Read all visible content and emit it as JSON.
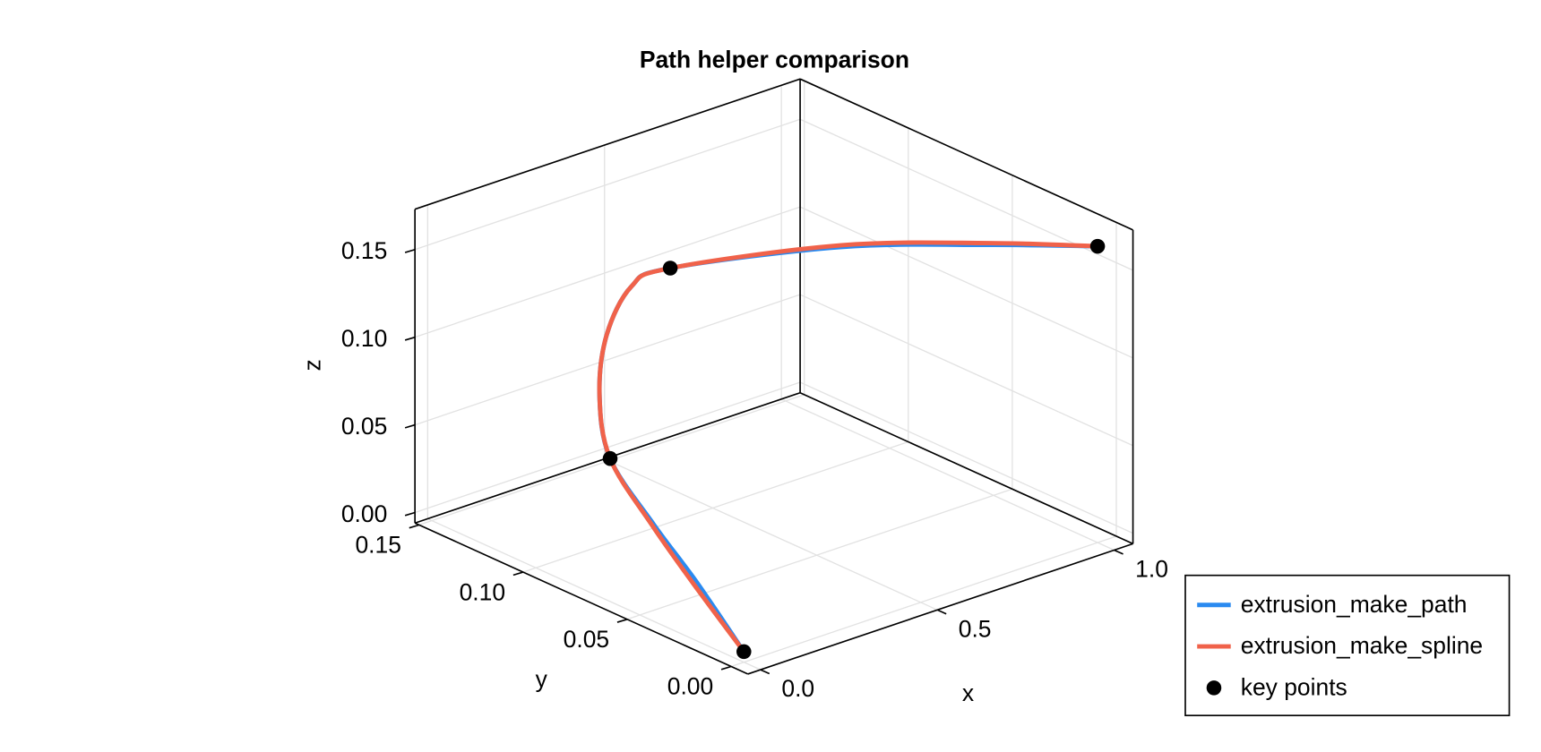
{
  "chart_data": {
    "type": "line3d",
    "title": "Path helper comparison",
    "xlabel": "x",
    "ylabel": "y",
    "zlabel": "z",
    "xlim": [
      -0.036,
      1.053
    ],
    "ylim": [
      -0.008,
      0.152
    ],
    "zlim": [
      -0.006,
      0.173
    ],
    "xticks": [
      {
        "value": 0,
        "label": "0.0"
      },
      {
        "value": 0.5,
        "label": "0.5"
      },
      {
        "value": 1,
        "label": "1.0"
      }
    ],
    "yticks": [
      {
        "value": 0,
        "label": "0.00"
      },
      {
        "value": 0.05,
        "label": "0.05"
      },
      {
        "value": 0.1,
        "label": "0.10"
      },
      {
        "value": 0.15,
        "label": "0.15"
      }
    ],
    "zticks": [
      {
        "value": 0,
        "label": "0.00"
      },
      {
        "value": 0.05,
        "label": "0.05"
      },
      {
        "value": 0.1,
        "label": "0.10"
      },
      {
        "value": 0.15,
        "label": "0.15"
      }
    ],
    "grid": true,
    "legend": "right",
    "series": [
      {
        "name": "extrusion_make_path",
        "color": "#2a8af0",
        "x": [
          0,
          0.16,
          0.215,
          0.21,
          0.18,
          0.2,
          0.27,
          0.38,
          0.57,
          0.81,
          1.0
        ],
        "y": [
          0,
          0.05,
          0.08,
          0.1,
          0.1,
          0.1,
          0.1,
          0.1,
          0.05,
          0.02,
          0
        ],
        "z": [
          0,
          0.002,
          0.015,
          0.042,
          0.08,
          0.113,
          0.136,
          0.139,
          0.165,
          0.166,
          0.163
        ]
      },
      {
        "name": "extrusion_make_spline",
        "color": "#f0624a",
        "x": [
          0,
          0.15,
          0.21,
          0.21,
          0.18,
          0.2,
          0.27,
          0.38,
          0.57,
          0.81,
          1.0
        ],
        "y": [
          0,
          0.05,
          0.08,
          0.1,
          0.1,
          0.1,
          0.1,
          0.1,
          0.05,
          0.02,
          0
        ],
        "z": [
          0,
          0.002,
          0.015,
          0.042,
          0.08,
          0.113,
          0.136,
          0.139,
          0.166,
          0.167,
          0.163
        ]
      },
      {
        "name": "key points",
        "type": "scatter",
        "color": "#000000",
        "x": [
          0,
          0.21,
          0.38,
          1.0
        ],
        "y": [
          0,
          0.1,
          0.1,
          0
        ],
        "z": [
          0,
          0.042,
          0.139,
          0.163
        ]
      }
    ]
  }
}
